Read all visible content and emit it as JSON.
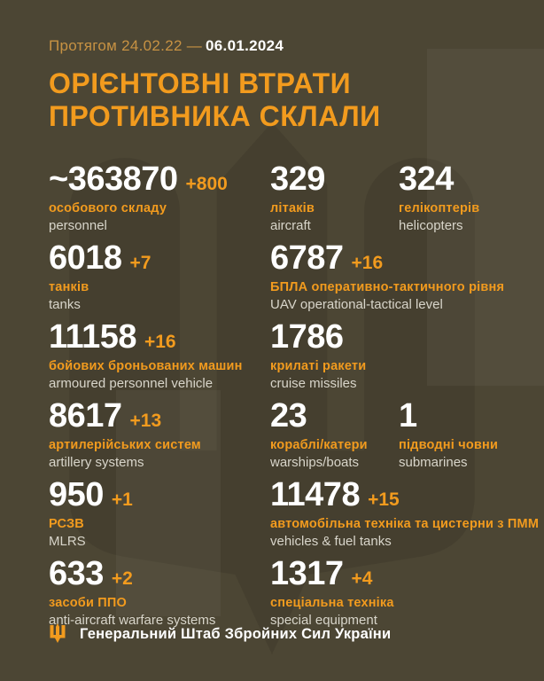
{
  "header": {
    "period_label": "Протягом 24.02.22 —",
    "date": "06.01.2024",
    "title_line1": "ОРІЄНТОВНІ ВТРАТИ",
    "title_line2": "ПРОТИВНИКА СКЛАЛИ"
  },
  "colors": {
    "background": "#4c4634",
    "accent": "#f29b1e",
    "muted_orange": "#c79243",
    "white": "#ffffff",
    "label_light": "#d8d5ca",
    "watermark_dark": "#3e3827"
  },
  "stats": [
    [
      {
        "value": "~363870",
        "delta": "+800",
        "label_uk": "особового складу",
        "label_en": "personnel"
      },
      {
        "value": "329",
        "delta": "",
        "label_uk": "літаків",
        "label_en": "aircraft"
      },
      {
        "value": "324",
        "delta": "",
        "label_uk": "гелікоптерів",
        "label_en": "helicopters"
      }
    ],
    [
      {
        "value": "6018",
        "delta": "+7",
        "label_uk": "танків",
        "label_en": "tanks"
      },
      {
        "value": "6787",
        "delta": "+16",
        "label_uk": "БПЛА оперативно-тактичного рівня",
        "label_en": "UAV operational-tactical level",
        "span": 2
      }
    ],
    [
      {
        "value": "11158",
        "delta": "+16",
        "label_uk": "бойових броньованих машин",
        "label_en": "armoured personnel vehicle"
      },
      {
        "value": "1786",
        "delta": "",
        "label_uk": "крилаті ракети",
        "label_en": "cruise missiles",
        "span": 2
      }
    ],
    [
      {
        "value": "8617",
        "delta": "+13",
        "label_uk": "артилерійських систем",
        "label_en": "artillery systems"
      },
      {
        "value": "23",
        "delta": "",
        "label_uk": "кораблі/катери",
        "label_en": "warships/boats"
      },
      {
        "value": "1",
        "delta": "",
        "label_uk": "підводні човни",
        "label_en": "submarines"
      }
    ],
    [
      {
        "value": "950",
        "delta": "+1",
        "label_uk": "РСЗВ",
        "label_en": "MLRS"
      },
      {
        "value": "11478",
        "delta": "+15",
        "label_uk": "автомобільна техніка та цистерни з ПММ",
        "label_en": "vehicles & fuel tanks",
        "span": 2
      }
    ],
    [
      {
        "value": "633",
        "delta": "+2",
        "label_uk": "засоби ППО",
        "label_en": "anti-aircraft warfare systems"
      },
      {
        "value": "1317",
        "delta": "+4",
        "label_uk": "спеціальна техніка",
        "label_en": "special equipment",
        "span": 2
      }
    ]
  ],
  "footer": {
    "org": "Генеральний Штаб Збройних Сил України",
    "icon": "trident-icon"
  }
}
